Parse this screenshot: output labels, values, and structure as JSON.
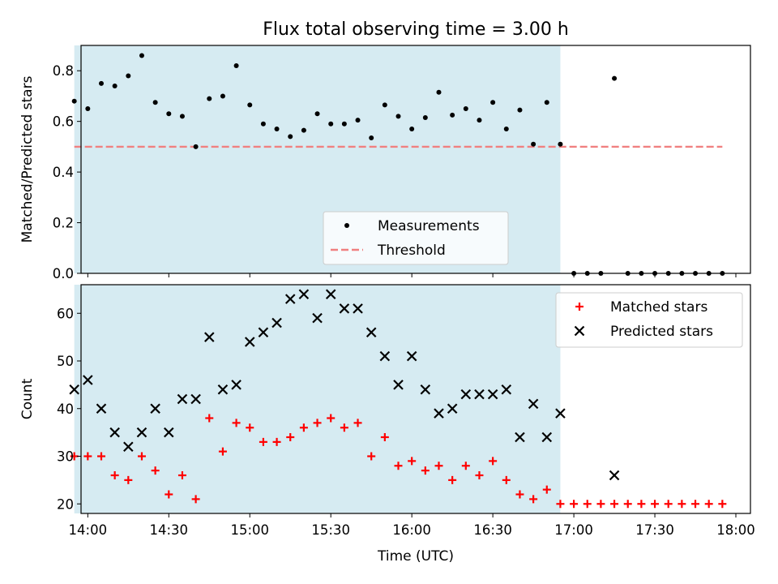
{
  "title": "Flux total observing time = 3.00 h",
  "xlabel": "Time (UTC)",
  "x_tick_labels": [
    "14:00",
    "14:30",
    "15:00",
    "15:30",
    "16:00",
    "16:30",
    "17:00",
    "17:30",
    "18:00"
  ],
  "shaded_region": {
    "start": "13:55",
    "end": "16:55",
    "color": "#add8e6"
  },
  "colors": {
    "measurements": "#000000",
    "threshold": "#f08080",
    "matched": "#ff0000",
    "predicted": "#000000"
  },
  "chart_data": [
    {
      "type": "scatter",
      "ylabel": "Matched/Predicted stars",
      "ylim": [
        0,
        0.9
      ],
      "yticks": [
        "0.0",
        "0.2",
        "0.4",
        "0.6",
        "0.8"
      ],
      "legend": {
        "placement": "lower-center",
        "entries": [
          "Measurements",
          "Threshold"
        ]
      },
      "threshold": {
        "name": "Threshold",
        "value": 0.5,
        "x_range": [
          "13:55",
          "17:55"
        ]
      },
      "series": [
        {
          "name": "Measurements",
          "x": [
            "13:55",
            "14:00",
            "14:05",
            "14:10",
            "14:15",
            "14:20",
            "14:25",
            "14:30",
            "14:35",
            "14:40",
            "14:45",
            "14:50",
            "14:55",
            "15:00",
            "15:05",
            "15:10",
            "15:15",
            "15:20",
            "15:25",
            "15:30",
            "15:35",
            "15:40",
            "15:45",
            "15:50",
            "15:55",
            "16:00",
            "16:05",
            "16:10",
            "16:15",
            "16:20",
            "16:25",
            "16:30",
            "16:35",
            "16:40",
            "16:45",
            "16:50",
            "16:55",
            "17:00",
            "17:05",
            "17:10",
            "17:15",
            "17:20",
            "17:25",
            "17:30",
            "17:35",
            "17:40",
            "17:45",
            "17:50",
            "17:55"
          ],
          "y": [
            0.68,
            0.65,
            0.75,
            0.74,
            0.78,
            0.86,
            0.675,
            0.63,
            0.62,
            0.5,
            0.69,
            0.7,
            0.82,
            0.665,
            0.59,
            0.57,
            0.54,
            0.565,
            0.63,
            0.59,
            0.59,
            0.605,
            0.535,
            0.665,
            0.62,
            0.57,
            0.615,
            0.715,
            0.625,
            0.65,
            0.605,
            0.675,
            0.57,
            0.645,
            0.51,
            0.675,
            0.51,
            0.0,
            0.0,
            0.0,
            0.77,
            0.0,
            0.0,
            0.0,
            0.0,
            0.0,
            0.0,
            0.0,
            0.0
          ]
        }
      ]
    },
    {
      "type": "scatter",
      "ylabel": "Count",
      "ylim": [
        18,
        66
      ],
      "yticks": [
        "20",
        "30",
        "40",
        "50",
        "60"
      ],
      "legend": {
        "placement": "top-right",
        "entries": [
          "Matched stars",
          "Predicted stars"
        ]
      },
      "series": [
        {
          "name": "Matched stars",
          "x": [
            "13:55",
            "14:00",
            "14:05",
            "14:10",
            "14:15",
            "14:20",
            "14:25",
            "14:30",
            "14:35",
            "14:40",
            "14:45",
            "14:50",
            "14:55",
            "15:00",
            "15:05",
            "15:10",
            "15:15",
            "15:20",
            "15:25",
            "15:30",
            "15:35",
            "15:40",
            "15:45",
            "15:50",
            "15:55",
            "16:00",
            "16:05",
            "16:10",
            "16:15",
            "16:20",
            "16:25",
            "16:30",
            "16:35",
            "16:40",
            "16:45",
            "16:50",
            "16:55",
            "17:00",
            "17:05",
            "17:10",
            "17:15",
            "17:20",
            "17:25",
            "17:30",
            "17:35",
            "17:40",
            "17:45",
            "17:50",
            "17:55"
          ],
          "y": [
            30,
            30,
            30,
            26,
            25,
            30,
            27,
            22,
            26,
            21,
            38,
            31,
            37,
            36,
            33,
            33,
            34,
            36,
            37,
            38,
            36,
            37,
            30,
            34,
            28,
            29,
            27,
            28,
            25,
            28,
            26,
            29,
            25,
            22,
            21,
            23,
            20,
            20,
            20,
            20,
            20,
            20,
            20,
            20,
            20,
            20,
            20,
            20,
            20
          ]
        },
        {
          "name": "Predicted stars",
          "x": [
            "13:55",
            "14:00",
            "14:05",
            "14:10",
            "14:15",
            "14:20",
            "14:25",
            "14:30",
            "14:35",
            "14:40",
            "14:45",
            "14:50",
            "14:55",
            "15:00",
            "15:05",
            "15:10",
            "15:15",
            "15:20",
            "15:25",
            "15:30",
            "15:35",
            "15:40",
            "15:45",
            "15:50",
            "15:55",
            "16:00",
            "16:05",
            "16:10",
            "16:15",
            "16:20",
            "16:25",
            "16:30",
            "16:35",
            "16:40",
            "16:45",
            "16:50",
            "16:55",
            "17:15"
          ],
          "y": [
            44,
            46,
            40,
            35,
            32,
            35,
            40,
            35,
            42,
            42,
            55,
            44,
            45,
            54,
            56,
            58,
            63,
            64,
            59,
            64,
            61,
            61,
            56,
            51,
            45,
            51,
            44,
            39,
            40,
            43,
            43,
            43,
            44,
            34,
            41,
            34,
            39,
            26
          ]
        }
      ]
    }
  ]
}
